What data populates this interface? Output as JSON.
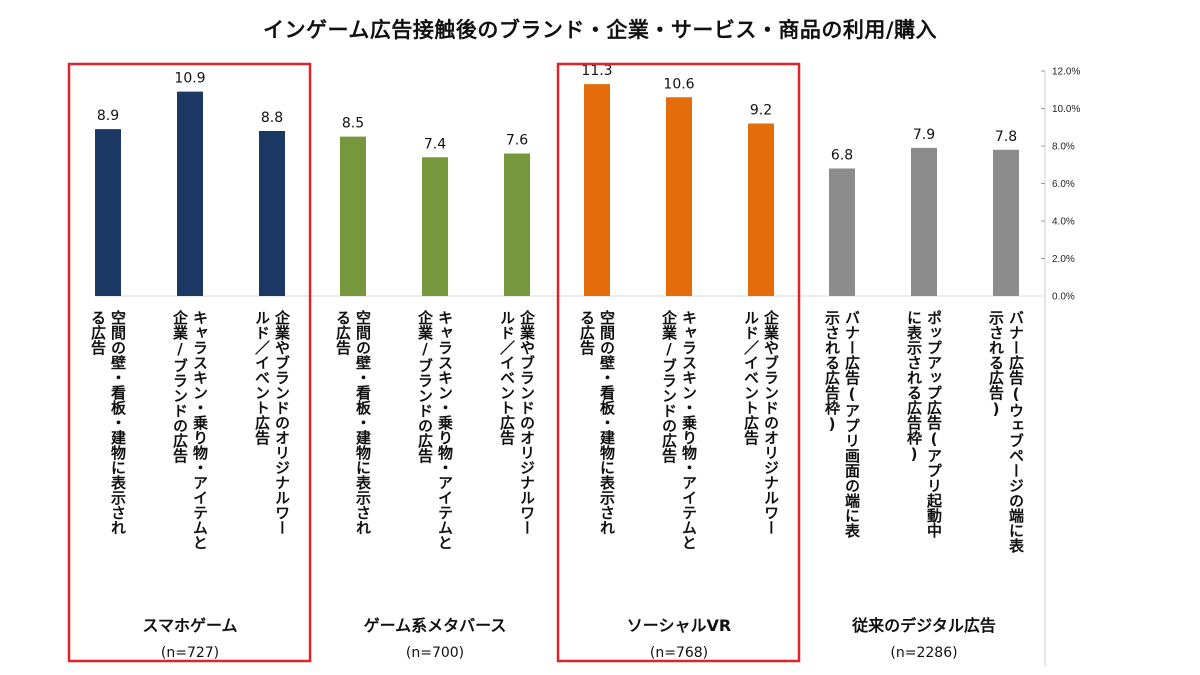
{
  "chart_data": {
    "type": "bar",
    "title": "インゲーム広告接触後のブランド・企業・サービス・商品の利用/購入",
    "ylim": [
      0,
      12
    ],
    "yticks": [
      "0.0%",
      "2.0%",
      "4.0%",
      "6.0%",
      "8.0%",
      "10.0%",
      "12.0%"
    ],
    "grid": false,
    "highlighted_groups": [
      "スマホゲーム",
      "ソーシャルVR"
    ],
    "groups": [
      {
        "name": "スマホゲーム",
        "n": "(n=727)",
        "color": "#1b3763",
        "bars": [
          {
            "label": [
              "空間の壁・看板・建物に表示され",
              "る広告"
            ],
            "value": 8.9,
            "value_label": "8.9"
          },
          {
            "label": [
              "キャラスキン・乗り物・アイテムと",
              "企業/ブランドの広告"
            ],
            "value": 10.9,
            "value_label": "10.9"
          },
          {
            "label": [
              "企業やブランドのオリジナルワー",
              "ルド／イベント広告"
            ],
            "value": 8.8,
            "value_label": "8.8"
          }
        ]
      },
      {
        "name": "ゲーム系メタバース",
        "n": "(n=700)",
        "color": "#76973b",
        "bars": [
          {
            "label": [
              "空間の壁・看板・建物に表示され",
              "る広告"
            ],
            "value": 8.5,
            "value_label": "8.5"
          },
          {
            "label": [
              "キャラスキン・乗り物・アイテムと",
              "企業/ブランドの広告"
            ],
            "value": 7.4,
            "value_label": "7.4"
          },
          {
            "label": [
              "企業やブランドのオリジナルワー",
              "ルド／イベント広告"
            ],
            "value": 7.6,
            "value_label": "7.6"
          }
        ]
      },
      {
        "name": "ソーシャルVR",
        "n": "(n=768)",
        "color": "#e46c0a",
        "bars": [
          {
            "label": [
              "空間の壁・看板・建物に表示され",
              "る広告"
            ],
            "value": 11.3,
            "value_label": "11.3"
          },
          {
            "label": [
              "キャラスキン・乗り物・アイテムと",
              "企業/ブランドの広告"
            ],
            "value": 10.6,
            "value_label": "10.6"
          },
          {
            "label": [
              "企業やブランドのオリジナルワー",
              "ルド／イベント広告"
            ],
            "value": 9.2,
            "value_label": "9.2"
          }
        ]
      },
      {
        "name": "従来のデジタル広告",
        "n": "(n=2286)",
        "color": "#8c8c8c",
        "bars": [
          {
            "label": [
              "バナー広告(アプリ画面の端に表",
              "示される広告枠)"
            ],
            "value": 6.8,
            "value_label": "6.8"
          },
          {
            "label": [
              "ポップアップ広告(アプリ起動中",
              "に表示される広告枠)"
            ],
            "value": 7.9,
            "value_label": "7.9"
          },
          {
            "label": [
              "バナー広告(ウェブページの端に表",
              "示される広告)"
            ],
            "value": 7.8,
            "value_label": "7.8"
          }
        ]
      }
    ],
    "highlight_color": "#e0242b"
  }
}
